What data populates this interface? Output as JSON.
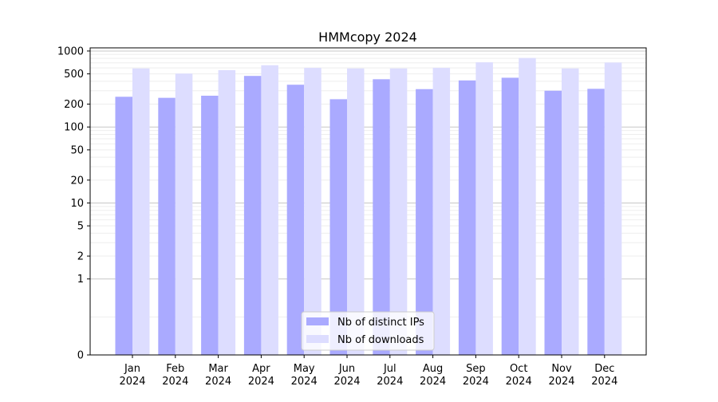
{
  "chart_data": {
    "type": "bar",
    "title": "HMMcopy 2024",
    "xlabel": "",
    "ylabel": "",
    "y_scale": "symlog",
    "ylim": [
      0,
      1100
    ],
    "grid": true,
    "legend_position": "lower center",
    "categories": [
      {
        "month": "Jan",
        "year": "2024"
      },
      {
        "month": "Feb",
        "year": "2024"
      },
      {
        "month": "Mar",
        "year": "2024"
      },
      {
        "month": "Apr",
        "year": "2024"
      },
      {
        "month": "May",
        "year": "2024"
      },
      {
        "month": "Jun",
        "year": "2024"
      },
      {
        "month": "Jul",
        "year": "2024"
      },
      {
        "month": "Aug",
        "year": "2024"
      },
      {
        "month": "Sep",
        "year": "2024"
      },
      {
        "month": "Oct",
        "year": "2024"
      },
      {
        "month": "Nov",
        "year": "2024"
      },
      {
        "month": "Dec",
        "year": "2024"
      }
    ],
    "y_ticks": [
      {
        "value": 0,
        "label": "0"
      },
      {
        "value": 1,
        "label": "1"
      },
      {
        "value": 2,
        "label": "2"
      },
      {
        "value": 5,
        "label": "5"
      },
      {
        "value": 10,
        "label": "10"
      },
      {
        "value": 20,
        "label": "20"
      },
      {
        "value": 50,
        "label": "50"
      },
      {
        "value": 100,
        "label": "100"
      },
      {
        "value": 200,
        "label": "200"
      },
      {
        "value": 500,
        "label": "500"
      },
      {
        "value": 1000,
        "label": "1000"
      }
    ],
    "series": [
      {
        "name": "Nb of distinct IPs",
        "color": "#aaaaff",
        "values": [
          250,
          242,
          258,
          470,
          360,
          232,
          425,
          315,
          410,
          445,
          300,
          318
        ]
      },
      {
        "name": "Nb of downloads",
        "color": "#ddddff",
        "values": [
          590,
          505,
          560,
          650,
          600,
          590,
          590,
          600,
          710,
          810,
          590,
          705
        ]
      }
    ]
  }
}
